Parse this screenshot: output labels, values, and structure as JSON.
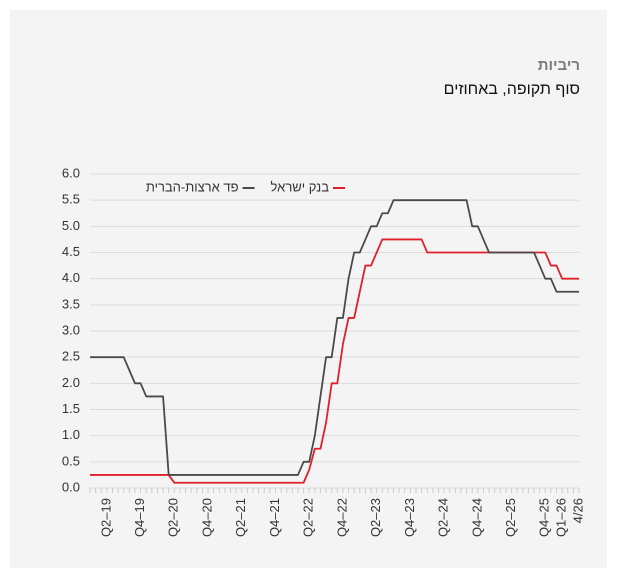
{
  "chart_data": {
    "type": "line",
    "title": "ריביות",
    "subtitle": "סוף תקופה, באחוזים",
    "categories": [
      null,
      null,
      null,
      "Q2–19",
      null,
      null,
      null,
      null,
      null,
      "Q4–19",
      null,
      null,
      null,
      null,
      null,
      "Q2–20",
      null,
      null,
      null,
      null,
      null,
      "Q4–20",
      null,
      null,
      null,
      null,
      null,
      "Q2–21",
      null,
      null,
      null,
      null,
      null,
      "Q4–21",
      null,
      null,
      null,
      null,
      null,
      "Q2–22",
      null,
      null,
      null,
      null,
      null,
      "Q4–22",
      null,
      null,
      null,
      null,
      null,
      "Q2–23",
      null,
      null,
      null,
      null,
      null,
      "Q4–23",
      null,
      null,
      null,
      null,
      null,
      "Q2–24",
      null,
      null,
      null,
      null,
      null,
      "Q4–24",
      null,
      null,
      null,
      null,
      null,
      "Q2–25",
      null,
      null,
      null,
      null,
      null,
      "Q4–25",
      null,
      null,
      "Q1–26",
      null,
      null,
      "4/26"
    ],
    "series": [
      {
        "name": "בנק ישראל",
        "color": "#e0202a",
        "values": [
          0.25,
          0.25,
          0.25,
          0.25,
          0.25,
          0.25,
          0.25,
          0.25,
          0.25,
          0.25,
          0.25,
          0.25,
          0.25,
          0.25,
          0.25,
          0.1,
          0.1,
          0.1,
          0.1,
          0.1,
          0.1,
          0.1,
          0.1,
          0.1,
          0.1,
          0.1,
          0.1,
          0.1,
          0.1,
          0.1,
          0.1,
          0.1,
          0.1,
          0.1,
          0.1,
          0.1,
          0.1,
          0.1,
          0.1,
          0.35,
          0.75,
          0.75,
          1.25,
          2.0,
          2.0,
          2.75,
          3.25,
          3.25,
          3.75,
          4.25,
          4.25,
          4.5,
          4.75,
          4.75,
          4.75,
          4.75,
          4.75,
          4.75,
          4.75,
          4.75,
          4.5,
          4.5,
          4.5,
          4.5,
          4.5,
          4.5,
          4.5,
          4.5,
          4.5,
          4.5,
          4.5,
          4.5,
          4.5,
          4.5,
          4.5,
          4.5,
          4.5,
          4.5,
          4.5,
          4.5,
          4.5,
          4.5,
          4.25,
          4.25,
          4.0,
          4.0,
          4.0,
          4.0
        ]
      },
      {
        "name": "פד ארצות-הברית",
        "color": "#4a4a4a",
        "values": [
          2.5,
          2.5,
          2.5,
          2.5,
          2.5,
          2.5,
          2.5,
          2.25,
          2.0,
          2.0,
          1.75,
          1.75,
          1.75,
          1.75,
          0.25,
          0.25,
          0.25,
          0.25,
          0.25,
          0.25,
          0.25,
          0.25,
          0.25,
          0.25,
          0.25,
          0.25,
          0.25,
          0.25,
          0.25,
          0.25,
          0.25,
          0.25,
          0.25,
          0.25,
          0.25,
          0.25,
          0.25,
          0.25,
          0.5,
          0.5,
          1.0,
          1.75,
          2.5,
          2.5,
          3.25,
          3.25,
          4.0,
          4.5,
          4.5,
          4.75,
          5.0,
          5.0,
          5.25,
          5.25,
          5.5,
          5.5,
          5.5,
          5.5,
          5.5,
          5.5,
          5.5,
          5.5,
          5.5,
          5.5,
          5.5,
          5.5,
          5.5,
          5.5,
          5.0,
          5.0,
          4.75,
          4.5,
          4.5,
          4.5,
          4.5,
          4.5,
          4.5,
          4.5,
          4.5,
          4.5,
          4.25,
          4.0,
          4.0,
          3.75,
          3.75,
          3.75,
          3.75,
          3.75
        ]
      }
    ],
    "ylim": [
      0,
      6
    ],
    "yticks": [
      {
        "value": 0,
        "label": "0.0"
      },
      0.5,
      {
        "value": 1,
        "label": "1.0"
      },
      1.5,
      {
        "value": 2,
        "label": "2.0"
      },
      2.5,
      {
        "value": 3,
        "label": "3.0"
      },
      3.5,
      {
        "value": 4,
        "label": "4.0"
      },
      4.5,
      {
        "value": 5,
        "label": "5.0"
      },
      5.5,
      {
        "value": 6,
        "label": "6.0"
      }
    ],
    "grid": true,
    "legend": "top-left"
  }
}
